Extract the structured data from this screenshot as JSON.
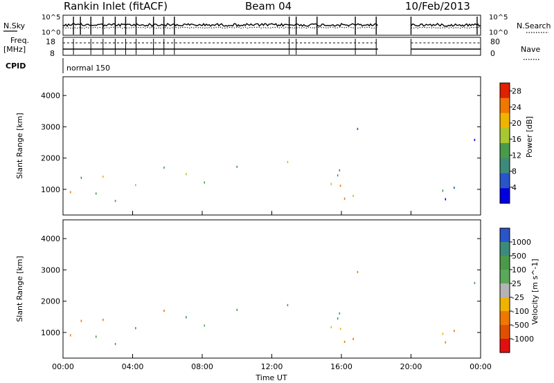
{
  "header": {
    "station": "Rankin Inlet (fitACF)",
    "beam": "Beam 04",
    "date": "10/Feb/2013"
  },
  "top_panels": {
    "nsky_label": "N.Sky",
    "nsky_ticks": [
      "10^5",
      "10^0"
    ],
    "nsearch_label": "N.Search",
    "freq_label_1": "Freq.",
    "freq_label_2": "[MHz]",
    "freq_ticks": [
      "18",
      "8"
    ],
    "nave_label": "Nave",
    "nave_ticks": [
      "80",
      "0"
    ],
    "cpid_label": "CPID",
    "cpid_value": "normal 150"
  },
  "chart_data": [
    {
      "type": "heatmap",
      "title": "",
      "xlabel": "",
      "ylabel": "Slant Range [km]",
      "xlim": [
        0,
        24
      ],
      "ylim": [
        180,
        4600
      ],
      "yticks": [
        1000,
        2000,
        3000,
        4000
      ],
      "colorbar_label": "Power [dB]",
      "colorbar_ticks": [
        4,
        8,
        12,
        16,
        20,
        24,
        28
      ],
      "colorbar_range": [
        0,
        30
      ],
      "colors": [
        "#0000e0",
        "#2a55c8",
        "#3e8a7a",
        "#4a9a4a",
        "#a8c832",
        "#f0b400",
        "#f07800",
        "#e02000"
      ]
    },
    {
      "type": "heatmap",
      "title": "",
      "xlabel": "Time UT",
      "ylabel": "Slant Range [km]",
      "xlim": [
        0,
        24
      ],
      "ylim": [
        180,
        4600
      ],
      "yticks": [
        1000,
        2000,
        3000,
        4000
      ],
      "xticks": [
        "00:00",
        "04:00",
        "08:00",
        "12:00",
        "16:00",
        "20:00",
        "00:00"
      ],
      "colorbar_label": "Velocity [m s^-1]",
      "colorbar_ticks": [
        1000,
        500,
        100,
        25,
        -25,
        -100,
        -500,
        -1000
      ],
      "colors": [
        "#2a55c8",
        "#3e8a7a",
        "#4a9a4a",
        "#5aa85a",
        "#b4b4b4",
        "#f0b400",
        "#f07800",
        "#e05000",
        "#e01010"
      ]
    }
  ]
}
